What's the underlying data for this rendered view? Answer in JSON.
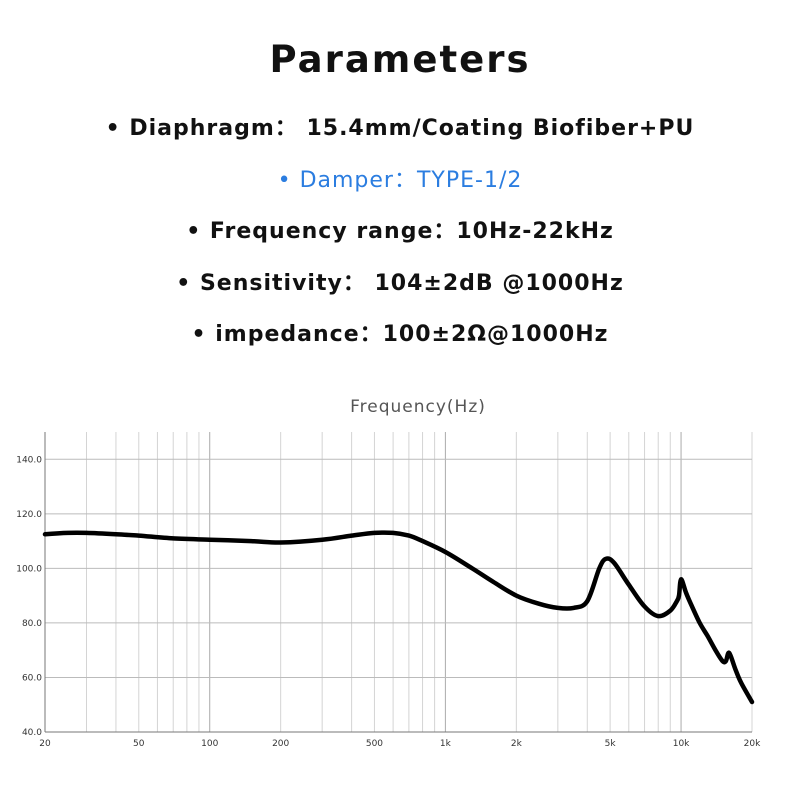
{
  "header": {
    "title": "Parameters"
  },
  "specs": [
    {
      "text": "• Diaphragm： 15.4mm/Coating Biofiber+PU",
      "color": "#111111"
    },
    {
      "text": "• Damper：TYPE-1/2",
      "color": "#2b7de0"
    },
    {
      "text": "• Frequency range：10Hz-22kHz",
      "color": "#111111"
    },
    {
      "text": "• Sensitivity： 104±2dB @1000Hz",
      "color": "#111111"
    },
    {
      "text": "• impedance：100±2Ω@1000Hz",
      "color": "#111111"
    }
  ],
  "chart_data": {
    "type": "line",
    "title": "Frequency(Hz)",
    "xscale": "log",
    "xlim": [
      20,
      20000
    ],
    "ylim": [
      40,
      150
    ],
    "grid": true,
    "x_ticks": [
      20,
      50,
      100,
      200,
      500,
      1000,
      2000,
      5000,
      10000,
      20000
    ],
    "x_tick_labels": [
      "20",
      "50",
      "100",
      "200",
      "500",
      "1k",
      "2k",
      "5k",
      "10k",
      "20k"
    ],
    "y_ticks": [
      40,
      60,
      80,
      100,
      120,
      140
    ],
    "y_tick_labels": [
      "40.0",
      "60.0",
      "80.0",
      "100.0",
      "120.0",
      "140.0"
    ],
    "line_color": "#000000",
    "series": [
      {
        "x": [
          20,
          25,
          30,
          40,
          50,
          70,
          100,
          150,
          200,
          300,
          400,
          500,
          600,
          700,
          800,
          1000,
          1300,
          1600,
          2000,
          2500,
          3000,
          3500,
          4000,
          4500,
          4800,
          5200,
          6000,
          7000,
          8000,
          9000,
          9600,
          9800,
          10000,
          10500,
          11000,
          12000,
          13000,
          14000,
          15000,
          15500,
          16000,
          17000,
          18000,
          20000
        ],
        "y": [
          112.5,
          113,
          113,
          112.5,
          112,
          111,
          110.5,
          110,
          109.5,
          110.5,
          112,
          113,
          113,
          112,
          110,
          106,
          100,
          95,
          90,
          87,
          85.5,
          85.5,
          88,
          100,
          103.5,
          102,
          94,
          86,
          82.5,
          84.5,
          88,
          90,
          96,
          91,
          87,
          80,
          75,
          70,
          66,
          66,
          69,
          63,
          58,
          51
        ]
      }
    ]
  }
}
